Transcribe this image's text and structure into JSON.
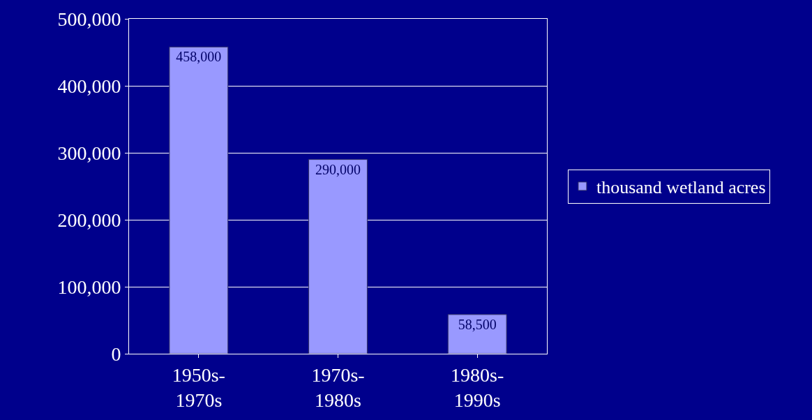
{
  "chart_data": {
    "type": "bar",
    "categories": [
      "1950s-1970s",
      "1970s-1980s",
      "1980s-1990s"
    ],
    "series": [
      {
        "name": "thousand wetland acres",
        "color": "#9999ff",
        "values": [
          458000,
          290000,
          58500
        ],
        "value_labels": [
          "458,000",
          "290,000",
          "58,500"
        ]
      }
    ],
    "ylim": [
      0,
      500000
    ],
    "yticks": [
      {
        "value": 0,
        "label": "0"
      },
      {
        "value": 100000,
        "label": "100,000"
      },
      {
        "value": 200000,
        "label": "200,000"
      },
      {
        "value": 300000,
        "label": "300,000"
      },
      {
        "value": 400000,
        "label": "400,000"
      },
      {
        "value": 500000,
        "label": "500,000"
      }
    ],
    "grid": "y",
    "legend": "right"
  }
}
